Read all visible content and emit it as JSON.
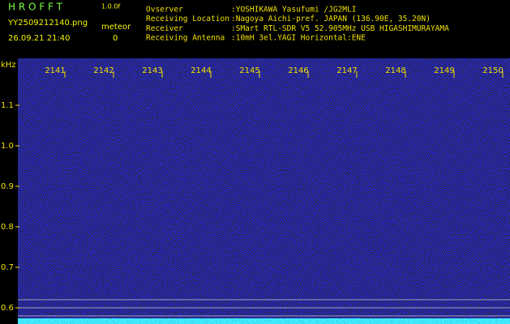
{
  "header": {
    "app": "H R O F F T",
    "version": "1.0.0f",
    "file": "YY2509212140.png",
    "datetime": "26.09.21 21:40",
    "counter_label": "meteor",
    "counter": "0"
  },
  "info": [
    {
      "label": "Ovserver",
      "value": ":YOSHIKAWA Yasufumi /JG2MLI"
    },
    {
      "label": "Receiving Location",
      "value": ":Nagoya Aichi-pref. JAPAN (136.90E, 35.20N)"
    },
    {
      "label": "Receiver",
      "value": ":SMart RTL-SDR V5 52.905MHz USB HIGASHIMURAYAMA"
    },
    {
      "label": "Receiving Antenna",
      "value": ":10mH 3el.YAGI Horizontal:ENE"
    }
  ],
  "spectrogram": {
    "y_unit": "kHz",
    "y_labels": [
      "1.1",
      "1.0",
      "0.9",
      "0.8",
      "0.7",
      "0.6"
    ],
    "x_labels": [
      "2141",
      "2142",
      "2143",
      "2144",
      "2145",
      "2146",
      "2147",
      "2148",
      "2149",
      "2150"
    ]
  }
}
